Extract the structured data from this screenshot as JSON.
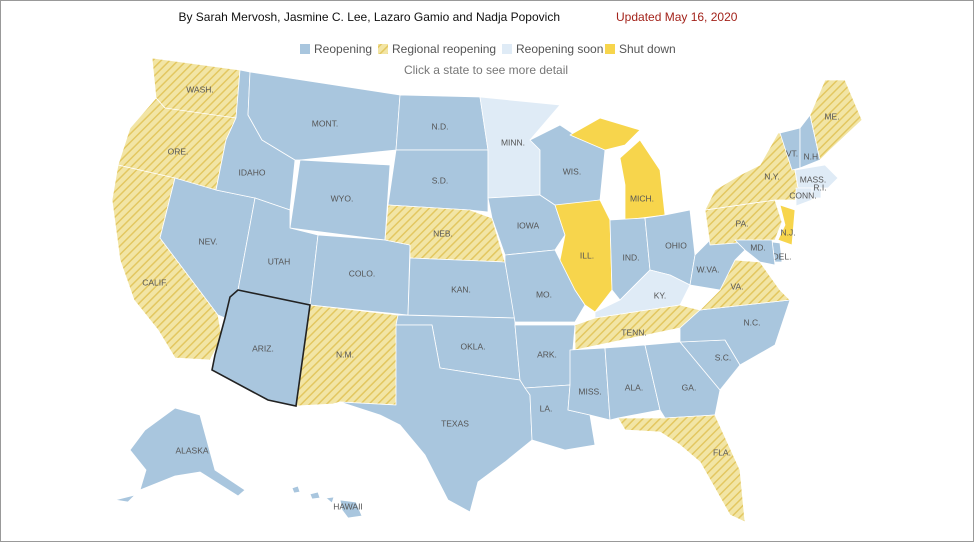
{
  "header": {
    "byline": "By Sarah Mervosh, Jasmine C. Lee, Lazaro Gamio and Nadja Popovich",
    "updated": "Updated May 16, 2020"
  },
  "legend": [
    {
      "label": "Reopening",
      "color": "#a9c6de"
    },
    {
      "label": "Regional reopening",
      "color": "hatch"
    },
    {
      "label": "Reopening soon",
      "color": "#dfebf6"
    },
    {
      "label": "Shut down",
      "color": "#f7d54c"
    }
  ],
  "instruction": "Click a state to see more detail",
  "states": [
    {
      "label": "WASH.",
      "status": "Regional reopening"
    },
    {
      "label": "ORE.",
      "status": "Regional reopening"
    },
    {
      "label": "CALIF.",
      "status": "Regional reopening"
    },
    {
      "label": "NEV.",
      "status": "Reopening"
    },
    {
      "label": "IDAHO",
      "status": "Reopening"
    },
    {
      "label": "MONT.",
      "status": "Reopening"
    },
    {
      "label": "WYO.",
      "status": "Reopening"
    },
    {
      "label": "UTAH",
      "status": "Reopening"
    },
    {
      "label": "ARIZ.",
      "status": "Reopening",
      "selected": true
    },
    {
      "label": "COLO.",
      "status": "Reopening"
    },
    {
      "label": "N.M.",
      "status": "Regional reopening"
    },
    {
      "label": "N.D.",
      "status": "Reopening"
    },
    {
      "label": "S.D.",
      "status": "Reopening"
    },
    {
      "label": "NEB.",
      "status": "Regional reopening"
    },
    {
      "label": "KAN.",
      "status": "Reopening"
    },
    {
      "label": "OKLA.",
      "status": "Reopening"
    },
    {
      "label": "TEXAS",
      "status": "Reopening"
    },
    {
      "label": "MINN.",
      "status": "Reopening soon"
    },
    {
      "label": "IOWA",
      "status": "Reopening"
    },
    {
      "label": "MO.",
      "status": "Reopening"
    },
    {
      "label": "ARK.",
      "status": "Reopening"
    },
    {
      "label": "LA.",
      "status": "Reopening"
    },
    {
      "label": "WIS.",
      "status": "Reopening"
    },
    {
      "label": "ILL.",
      "status": "Shut down"
    },
    {
      "label": "MICH.",
      "status": "Shut down"
    },
    {
      "label": "IND.",
      "status": "Reopening"
    },
    {
      "label": "OHIO",
      "status": "Reopening"
    },
    {
      "label": "KY.",
      "status": "Reopening soon"
    },
    {
      "label": "TENN.",
      "status": "Regional reopening"
    },
    {
      "label": "MISS.",
      "status": "Reopening"
    },
    {
      "label": "ALA.",
      "status": "Reopening"
    },
    {
      "label": "GA.",
      "status": "Reopening"
    },
    {
      "label": "FLA.",
      "status": "Regional reopening"
    },
    {
      "label": "S.C.",
      "status": "Reopening"
    },
    {
      "label": "N.C.",
      "status": "Reopening"
    },
    {
      "label": "VA.",
      "status": "Regional reopening"
    },
    {
      "label": "W.VA.",
      "status": "Reopening"
    },
    {
      "label": "PA.",
      "status": "Regional reopening"
    },
    {
      "label": "N.Y.",
      "status": "Regional reopening"
    },
    {
      "label": "VT.",
      "status": "Reopening"
    },
    {
      "label": "N.H.",
      "status": "Reopening"
    },
    {
      "label": "ME.",
      "status": "Regional reopening"
    },
    {
      "label": "MASS.",
      "status": "Reopening soon"
    },
    {
      "label": "R.I.",
      "status": "Reopening soon"
    },
    {
      "label": "CONN.",
      "status": "Reopening soon"
    },
    {
      "label": "N.J.",
      "status": "Shut down"
    },
    {
      "label": "DEL.",
      "status": "Reopening"
    },
    {
      "label": "MD.",
      "status": "Reopening"
    },
    {
      "label": "ALASKA",
      "status": "Reopening"
    },
    {
      "label": "HAWAII",
      "status": "Reopening"
    }
  ]
}
